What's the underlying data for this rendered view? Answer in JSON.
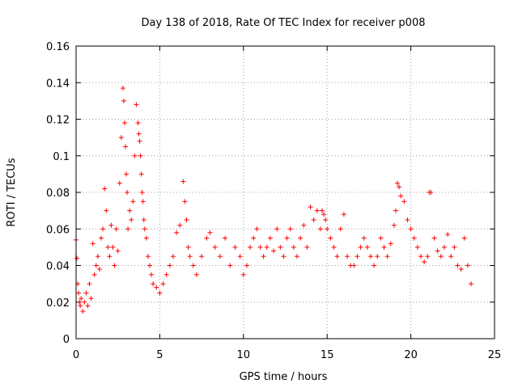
{
  "chart_data": {
    "type": "scatter",
    "title": "Day 138 of 2018, Rate Of TEC Index for receiver p008",
    "xlabel": "GPS time / hours",
    "ylabel": "ROTI / TECUs",
    "xlim": [
      0,
      25
    ],
    "ylim": [
      0,
      0.16
    ],
    "x_ticks": [
      0,
      5,
      10,
      15,
      20,
      25
    ],
    "y_ticks": [
      0,
      0.02,
      0.04,
      0.06,
      0.08,
      0.1,
      0.12,
      0.14,
      0.16
    ],
    "x_tick_labels": [
      "0",
      "5",
      "10",
      "15",
      "20",
      "25"
    ],
    "y_tick_labels": [
      "0",
      "0.02",
      "0.04",
      "0.06",
      "0.08",
      "0.1",
      "0.12",
      "0.14",
      "0.16"
    ],
    "grid": true,
    "grid_style": "dotted",
    "marker": "plus",
    "marker_color": "#ff0000",
    "series": [
      {
        "x": [
          0.0,
          0.05,
          0.1,
          0.15,
          0.2,
          0.25,
          0.3,
          0.4,
          0.5,
          0.6,
          0.7,
          0.8,
          0.9,
          1.0,
          1.1,
          1.2,
          1.3,
          1.4,
          1.5,
          1.6,
          1.7,
          1.8,
          1.9,
          2.0,
          2.1,
          2.2,
          2.3,
          2.4,
          2.5,
          2.6,
          2.7,
          2.8,
          2.85,
          2.9,
          2.95,
          3.0,
          3.05,
          3.1,
          3.2,
          3.3,
          3.4,
          3.5,
          3.6,
          3.7,
          3.75,
          3.8,
          3.85,
          3.9,
          3.95,
          4.0,
          4.05,
          4.1,
          4.2,
          4.3,
          4.4,
          4.5,
          4.6,
          4.8,
          5.0,
          5.2,
          5.4,
          5.6,
          5.8,
          6.0,
          6.2,
          6.4,
          6.5,
          6.6,
          6.7,
          6.8,
          7.0,
          7.2,
          7.5,
          7.8,
          8.0,
          8.3,
          8.6,
          8.9,
          9.2,
          9.5,
          9.8,
          10.0,
          10.2,
          10.4,
          10.6,
          10.8,
          11.0,
          11.2,
          11.4,
          11.6,
          11.8,
          12.0,
          12.2,
          12.4,
          12.6,
          12.8,
          13.0,
          13.2,
          13.4,
          13.6,
          13.8,
          14.0,
          14.2,
          14.4,
          14.6,
          14.7,
          14.8,
          14.9,
          15.0,
          15.2,
          15.4,
          15.6,
          15.8,
          16.0,
          16.2,
          16.4,
          16.6,
          16.8,
          17.0,
          17.2,
          17.4,
          17.6,
          17.8,
          18.0,
          18.2,
          18.4,
          18.6,
          18.8,
          19.0,
          19.1,
          19.2,
          19.3,
          19.4,
          19.6,
          19.8,
          20.0,
          20.2,
          20.4,
          20.6,
          20.8,
          21.0,
          21.1,
          21.2,
          21.4,
          21.6,
          21.8,
          22.0,
          22.2,
          22.4,
          22.6,
          22.8,
          23.0,
          23.2,
          23.4,
          23.6
        ],
        "y": [
          0.054,
          0.044,
          0.03,
          0.025,
          0.02,
          0.018,
          0.022,
          0.015,
          0.02,
          0.025,
          0.018,
          0.03,
          0.022,
          0.052,
          0.035,
          0.04,
          0.045,
          0.038,
          0.055,
          0.06,
          0.082,
          0.07,
          0.05,
          0.045,
          0.062,
          0.05,
          0.04,
          0.06,
          0.048,
          0.085,
          0.11,
          0.137,
          0.13,
          0.118,
          0.105,
          0.09,
          0.08,
          0.06,
          0.07,
          0.065,
          0.075,
          0.1,
          0.128,
          0.118,
          0.112,
          0.108,
          0.1,
          0.09,
          0.08,
          0.075,
          0.065,
          0.06,
          0.055,
          0.045,
          0.04,
          0.035,
          0.03,
          0.028,
          0.025,
          0.03,
          0.035,
          0.04,
          0.045,
          0.058,
          0.062,
          0.086,
          0.075,
          0.065,
          0.05,
          0.045,
          0.04,
          0.035,
          0.045,
          0.055,
          0.058,
          0.05,
          0.045,
          0.055,
          0.04,
          0.05,
          0.045,
          0.035,
          0.04,
          0.05,
          0.055,
          0.06,
          0.05,
          0.045,
          0.05,
          0.055,
          0.048,
          0.06,
          0.05,
          0.045,
          0.055,
          0.06,
          0.05,
          0.045,
          0.055,
          0.062,
          0.05,
          0.072,
          0.065,
          0.07,
          0.06,
          0.07,
          0.068,
          0.065,
          0.06,
          0.055,
          0.05,
          0.045,
          0.06,
          0.068,
          0.045,
          0.04,
          0.04,
          0.045,
          0.05,
          0.055,
          0.05,
          0.045,
          0.04,
          0.045,
          0.055,
          0.05,
          0.045,
          0.052,
          0.062,
          0.07,
          0.085,
          0.083,
          0.078,
          0.075,
          0.065,
          0.06,
          0.055,
          0.05,
          0.045,
          0.042,
          0.045,
          0.08,
          0.08,
          0.055,
          0.048,
          0.045,
          0.05,
          0.057,
          0.045,
          0.05,
          0.04,
          0.038,
          0.055,
          0.04,
          0.03
        ]
      }
    ]
  }
}
